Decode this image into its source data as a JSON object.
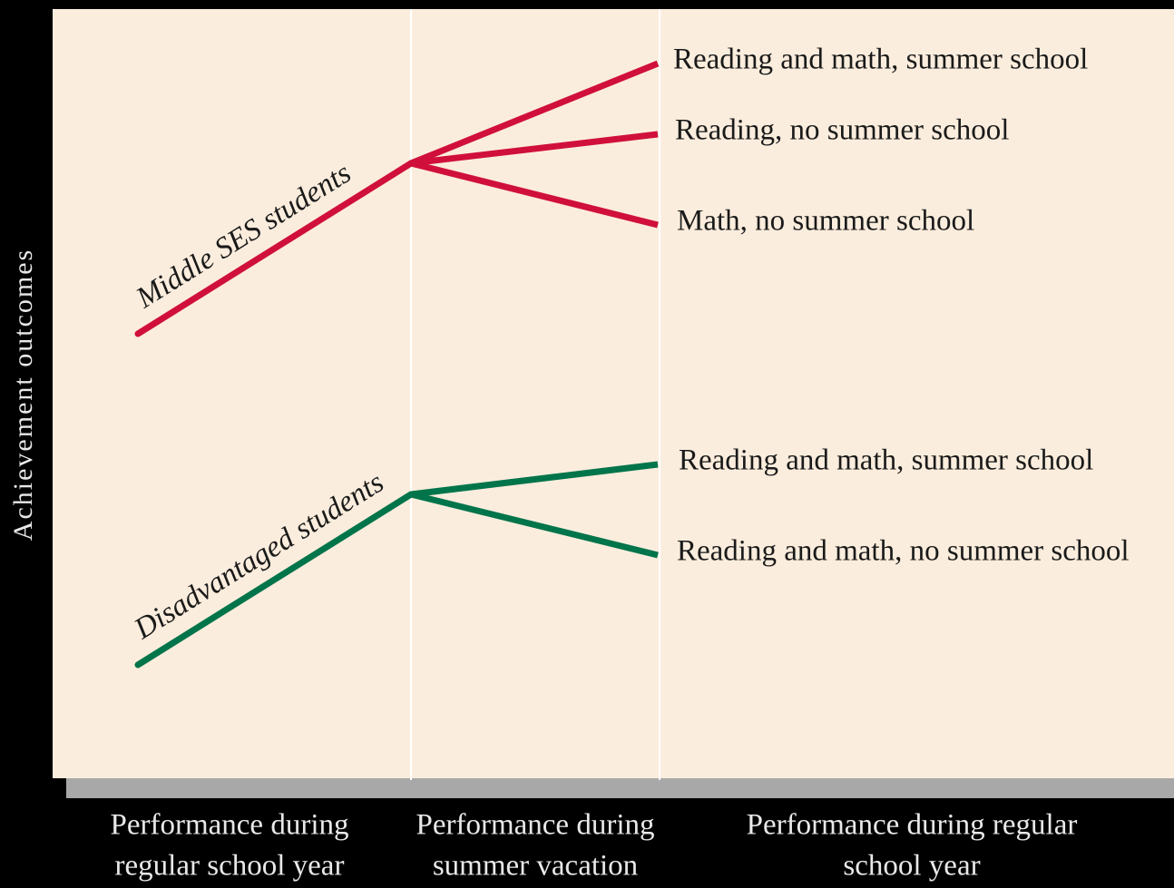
{
  "y_axis_label": "Achievement outcomes",
  "columns": [
    {
      "lines": [
        "Performance during",
        "regular school year"
      ]
    },
    {
      "lines": [
        "Performance during",
        "summer vacation"
      ]
    },
    {
      "lines": [
        "Performance during regular",
        "school year"
      ]
    }
  ],
  "groups": [
    {
      "label": "Middle SES students",
      "color": "#d0103a",
      "branches": [
        "Reading and math, summer school",
        "Reading, no summer school",
        "Math, no summer school"
      ]
    },
    {
      "label": "Disadvantaged students",
      "color": "#00744a",
      "branches": [
        "Reading and math, summer school",
        "Reading and math, no summer school"
      ]
    }
  ]
}
